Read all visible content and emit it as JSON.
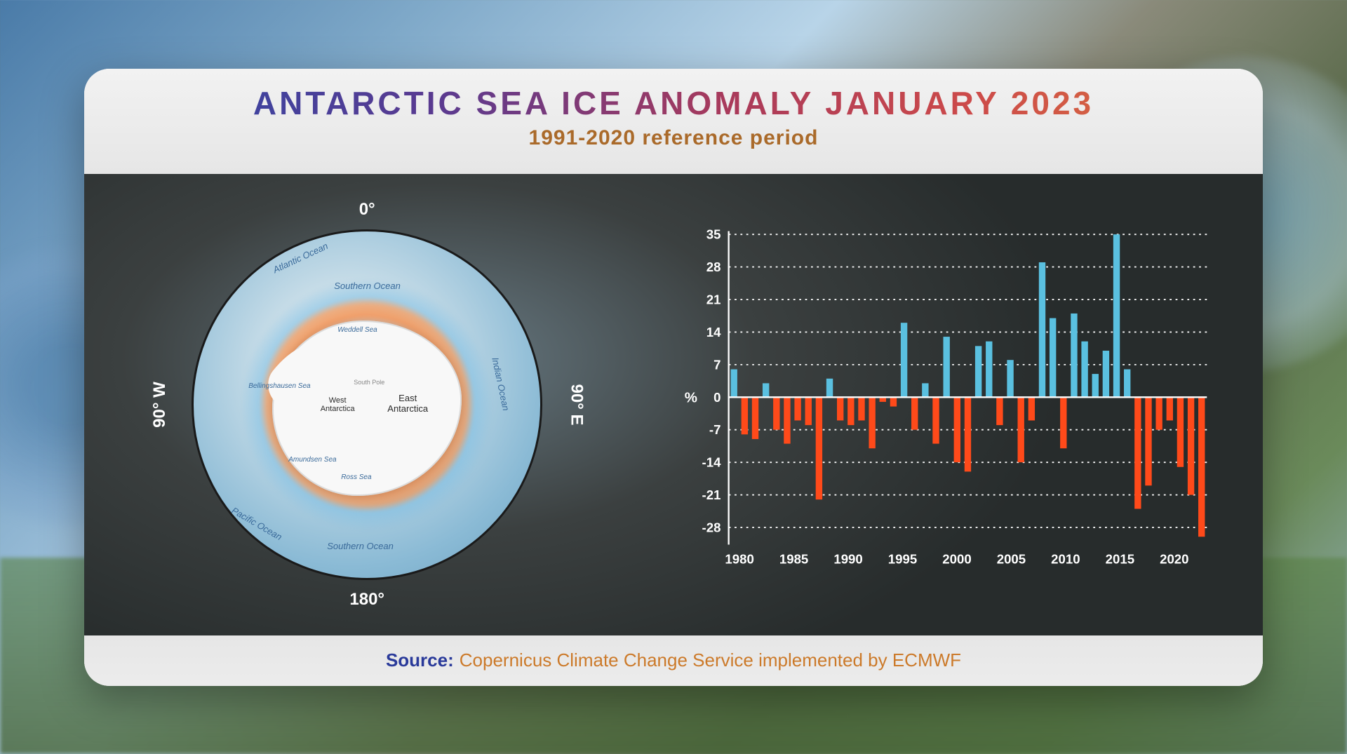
{
  "header": {
    "title": "ANTARCTIC SEA ICE ANOMALY JANUARY 2023",
    "subtitle": "1991-2020 reference period"
  },
  "footer": {
    "source_label": "Source:",
    "source_text": "Copernicus Climate Change Service implemented by ECMWF"
  },
  "map": {
    "degree_labels": {
      "top": "0°",
      "right": "90° E",
      "bottom": "180°",
      "left": "90° W"
    },
    "ocean_labels": {
      "atlantic": "Atlantic Ocean",
      "southern_top": "Southern Ocean",
      "indian": "Indian Ocean",
      "pacific": "Pacific Ocean",
      "southern_bottom": "Southern Ocean"
    },
    "sea_labels": {
      "weddell": "Weddell Sea",
      "bellingshausen": "Bellingshausen Sea",
      "amundsen": "Amundsen Sea",
      "ross": "Ross Sea"
    },
    "land_labels": {
      "west": "West Antarctica",
      "east": "East Antarctica",
      "pole": "South Pole"
    },
    "colors": {
      "ocean": "#8abad5",
      "ice": "#f8f8f8",
      "anomaly_warm": "#ff8232",
      "anomaly_cold": "#78bee6",
      "border": "#1a1a1a"
    }
  },
  "chart": {
    "type": "bar",
    "y_unit": "%",
    "ylim": [
      -31,
      35
    ],
    "yticks": [
      -28,
      -21,
      -14,
      -7,
      0,
      7,
      14,
      21,
      28,
      35
    ],
    "xlim": [
      1979,
      2023
    ],
    "xticks": [
      1980,
      1985,
      1990,
      1995,
      2000,
      2005,
      2010,
      2015,
      2020
    ],
    "bar_width": 0.62,
    "colors": {
      "positive": "#5ac0e0",
      "negative": "#ff4a1a",
      "axis": "#ffffff",
      "grid": "#ffffff",
      "text": "#ffffff"
    },
    "grid_dash": "3 6",
    "years": [
      1979,
      1980,
      1981,
      1982,
      1983,
      1984,
      1985,
      1986,
      1987,
      1988,
      1989,
      1990,
      1991,
      1992,
      1993,
      1994,
      1995,
      1996,
      1997,
      1998,
      1999,
      2000,
      2001,
      2002,
      2003,
      2004,
      2005,
      2006,
      2007,
      2008,
      2009,
      2010,
      2011,
      2012,
      2013,
      2014,
      2015,
      2016,
      2017,
      2018,
      2019,
      2020,
      2021,
      2022,
      2023
    ],
    "values": [
      6,
      -8,
      -9,
      3,
      -7,
      -10,
      -5,
      -6,
      -22,
      4,
      -5,
      -6,
      -5,
      -11,
      -1,
      -2,
      16,
      -7,
      3,
      -10,
      13,
      -14,
      -16,
      11,
      12,
      -6,
      8,
      -14,
      -5,
      29,
      17,
      -11,
      18,
      12,
      5,
      10,
      35,
      6,
      -24,
      -19,
      -7,
      -5,
      -15,
      -21,
      -30
    ]
  }
}
